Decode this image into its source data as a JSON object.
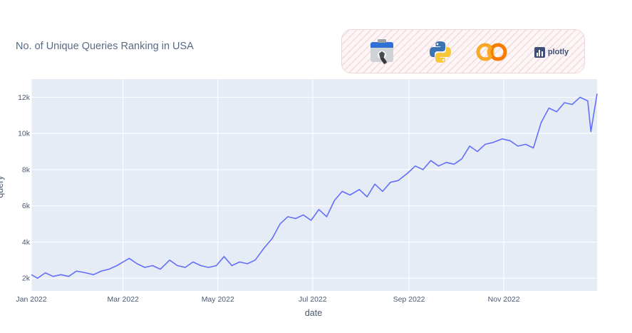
{
  "chart_data": {
    "type": "line",
    "title": "No. of Unique Queries Ranking in USA",
    "xlabel": "date",
    "ylabel": "query",
    "x_start": "2022-01-01",
    "x_end": "2022-12-31",
    "x_range": [
      "2022-01-01",
      "2022-12-31"
    ],
    "ylim": [
      1300,
      13000
    ],
    "grid": true,
    "line_color": "#636efa",
    "plot_bg": "#e5ecf6",
    "x_ticks": [
      {
        "date": "2022-01-01",
        "label": "Jan 2022"
      },
      {
        "date": "2022-03-01",
        "label": "Mar 2022"
      },
      {
        "date": "2022-05-01",
        "label": "May 2022"
      },
      {
        "date": "2022-07-01",
        "label": "Jul 2022"
      },
      {
        "date": "2022-09-01",
        "label": "Sep 2022"
      },
      {
        "date": "2022-11-01",
        "label": "Nov 2022"
      }
    ],
    "y_ticks": [
      {
        "value": 2000,
        "label": "2k"
      },
      {
        "value": 4000,
        "label": "4k"
      },
      {
        "value": 6000,
        "label": "6k"
      },
      {
        "value": 8000,
        "label": "8k"
      },
      {
        "value": 10000,
        "label": "10k"
      },
      {
        "value": 12000,
        "label": "12k"
      }
    ],
    "series": [
      {
        "x": [
          "2022-01-01",
          "2022-01-05",
          "2022-01-10",
          "2022-01-15",
          "2022-01-20",
          "2022-01-25",
          "2022-01-30",
          "2022-02-05",
          "2022-02-10",
          "2022-02-15",
          "2022-02-20",
          "2022-02-25",
          "2022-03-01",
          "2022-03-05",
          "2022-03-10",
          "2022-03-15",
          "2022-03-20",
          "2022-03-25",
          "2022-03-31",
          "2022-04-05",
          "2022-04-10",
          "2022-04-15",
          "2022-04-20",
          "2022-04-25",
          "2022-04-30",
          "2022-05-05",
          "2022-05-10",
          "2022-05-15",
          "2022-05-20",
          "2022-05-25",
          "2022-05-31",
          "2022-06-05",
          "2022-06-10",
          "2022-06-15",
          "2022-06-20",
          "2022-06-25",
          "2022-06-30",
          "2022-07-05",
          "2022-07-10",
          "2022-07-15",
          "2022-07-20",
          "2022-07-25",
          "2022-07-31",
          "2022-08-05",
          "2022-08-10",
          "2022-08-15",
          "2022-08-20",
          "2022-08-25",
          "2022-08-31",
          "2022-09-05",
          "2022-09-10",
          "2022-09-15",
          "2022-09-20",
          "2022-09-25",
          "2022-09-30",
          "2022-10-05",
          "2022-10-10",
          "2022-10-15",
          "2022-10-20",
          "2022-10-25",
          "2022-10-31",
          "2022-11-05",
          "2022-11-10",
          "2022-11-15",
          "2022-11-20",
          "2022-11-25",
          "2022-11-30",
          "2022-12-05",
          "2022-12-10",
          "2022-12-15",
          "2022-12-20",
          "2022-12-25",
          "2022-12-27",
          "2022-12-31"
        ],
        "y": [
          2200,
          2000,
          2300,
          2100,
          2200,
          2100,
          2400,
          2300,
          2200,
          2400,
          2500,
          2700,
          2900,
          3100,
          2800,
          2600,
          2700,
          2500,
          3000,
          2700,
          2600,
          2900,
          2700,
          2600,
          2700,
          3200,
          2700,
          2900,
          2800,
          3000,
          3700,
          4200,
          5000,
          5400,
          5300,
          5500,
          5200,
          5800,
          5400,
          6300,
          6800,
          6600,
          6900,
          6500,
          7200,
          6800,
          7300,
          7400,
          7800,
          8200,
          8000,
          8500,
          8200,
          8400,
          8300,
          8600,
          9300,
          9000,
          9400,
          9500,
          9700,
          9600,
          9300,
          9400,
          9200,
          10600,
          11400,
          11200,
          11700,
          11600,
          12000,
          11800,
          10100,
          12200
        ]
      }
    ]
  },
  "logos": [
    {
      "name": "search-console-icon"
    },
    {
      "name": "python-icon"
    },
    {
      "name": "colab-icon"
    },
    {
      "name": "plotly-icon",
      "text": "plotly"
    }
  ]
}
